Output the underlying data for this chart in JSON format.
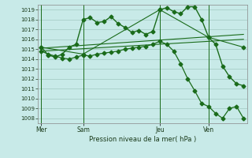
{
  "bg_color": "#c8eae8",
  "grid_color": "#a0c8c0",
  "line_color": "#1a6b1a",
  "ylabel": "Pression niveau de la mer( hPa )",
  "ylim": [
    1007.5,
    1019.5
  ],
  "yticks": [
    1008,
    1009,
    1010,
    1011,
    1012,
    1013,
    1014,
    1015,
    1016,
    1017,
    1018,
    1019
  ],
  "xtick_labels": [
    "Mer",
    "Sam",
    "Jeu",
    "Ven"
  ],
  "xtick_positions": [
    0,
    6,
    17,
    24
  ],
  "vline_positions": [
    0,
    6,
    17,
    24
  ],
  "xlim": [
    -0.5,
    29.5
  ],
  "main_x": [
    0,
    1,
    2,
    3,
    4,
    5,
    6,
    7,
    8,
    9,
    10,
    11,
    12,
    13,
    14,
    15,
    16,
    17,
    18,
    19,
    20,
    21,
    22,
    23,
    24,
    25,
    26,
    27,
    28,
    29
  ],
  "main_y": [
    1015.2,
    1014.4,
    1014.2,
    1014.5,
    1015.2,
    1015.5,
    1018.0,
    1018.2,
    1017.7,
    1017.8,
    1018.3,
    1017.6,
    1017.2,
    1016.7,
    1016.9,
    1016.5,
    1016.8,
    1019.0,
    1019.2,
    1018.8,
    1018.6,
    1019.3,
    1019.3,
    1018.0,
    1016.2,
    1015.5,
    1013.3,
    1012.2,
    1011.5,
    1011.3
  ],
  "drop_x": [
    0,
    1,
    2,
    3,
    4,
    5,
    6,
    7,
    8,
    9,
    10,
    11,
    12,
    13,
    14,
    15,
    16,
    17,
    18,
    19,
    20,
    21,
    22,
    23,
    24,
    25,
    26,
    27,
    28,
    29
  ],
  "drop_y": [
    1014.8,
    1014.5,
    1014.3,
    1014.1,
    1014.0,
    1014.2,
    1014.4,
    1014.3,
    1014.5,
    1014.6,
    1014.7,
    1014.8,
    1015.0,
    1015.1,
    1015.2,
    1015.3,
    1015.5,
    1015.8,
    1015.5,
    1014.8,
    1013.5,
    1012.0,
    1010.8,
    1009.5,
    1009.2,
    1008.5,
    1008.0,
    1009.0,
    1009.2,
    1008.0
  ],
  "trend1_x": [
    0,
    29
  ],
  "trend1_y": [
    1015.1,
    1016.5
  ],
  "trend2_x": [
    0,
    29
  ],
  "trend2_y": [
    1014.8,
    1016.0
  ],
  "seg_x": [
    0,
    6,
    17,
    24,
    29
  ],
  "seg_y": [
    1015.2,
    1014.5,
    1019.0,
    1016.2,
    1015.2
  ]
}
